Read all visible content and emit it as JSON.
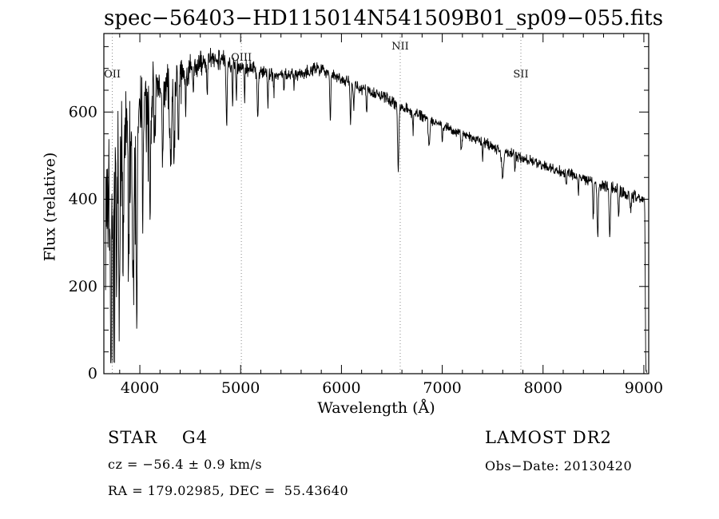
{
  "chart_data": {
    "type": "line",
    "title": "spec−56403−HD115014N541509B01_sp09−055.fits",
    "xlabel": "Wavelength (Å)",
    "ylabel": "Flux (relative)",
    "xlim": [
      3643,
      9048
    ],
    "ylim": [
      0,
      780
    ],
    "x_ticks": [
      4000,
      5000,
      6000,
      7000,
      8000,
      9000
    ],
    "y_ticks": [
      0,
      200,
      400,
      600
    ],
    "x_minor_step": 200,
    "y_minor_step": 50,
    "grid": false,
    "line_color": "#000000",
    "marker_line_color": "#888888",
    "line_markers": [
      {
        "label": "OII",
        "wl": 3727,
        "label_y": 97
      },
      {
        "label": "OIII",
        "wl": 5007,
        "label_y": 76
      },
      {
        "label": "NII",
        "wl": 6583,
        "label_y": 62
      },
      {
        "label": "SII",
        "wl": 7780,
        "label_y": 97
      }
    ],
    "spectrum": {
      "wl_start": 3660,
      "wl_end": 9030,
      "step": 3,
      "seed": 7,
      "continuum": [
        [
          3660,
          400
        ],
        [
          3700,
          420
        ],
        [
          3750,
          455
        ],
        [
          3800,
          500
        ],
        [
          3850,
          535
        ],
        [
          3900,
          555
        ],
        [
          3950,
          575
        ],
        [
          4000,
          600
        ],
        [
          4100,
          628
        ],
        [
          4200,
          648
        ],
        [
          4300,
          665
        ],
        [
          4400,
          682
        ],
        [
          4500,
          700
        ],
        [
          4600,
          710
        ],
        [
          4700,
          718
        ],
        [
          4800,
          724
        ],
        [
          4900,
          714
        ],
        [
          5000,
          702
        ],
        [
          5100,
          700
        ],
        [
          5200,
          694
        ],
        [
          5300,
          688
        ],
        [
          5400,
          685
        ],
        [
          5500,
          686
        ],
        [
          5600,
          690
        ],
        [
          5700,
          696
        ],
        [
          5800,
          700
        ],
        [
          5900,
          688
        ],
        [
          6000,
          678
        ],
        [
          6100,
          664
        ],
        [
          6200,
          652
        ],
        [
          6300,
          645
        ],
        [
          6400,
          636
        ],
        [
          6500,
          625
        ],
        [
          6600,
          612
        ],
        [
          6700,
          601
        ],
        [
          6800,
          592
        ],
        [
          6900,
          581
        ],
        [
          7000,
          570
        ],
        [
          7100,
          558
        ],
        [
          7200,
          549
        ],
        [
          7300,
          540
        ],
        [
          7400,
          531
        ],
        [
          7500,
          521
        ],
        [
          7600,
          512
        ],
        [
          7700,
          503
        ],
        [
          7800,
          494
        ],
        [
          7900,
          486
        ],
        [
          8000,
          478
        ],
        [
          8100,
          470
        ],
        [
          8200,
          462
        ],
        [
          8300,
          455
        ],
        [
          8400,
          448
        ],
        [
          8500,
          440
        ],
        [
          8600,
          432
        ],
        [
          8700,
          424
        ],
        [
          8800,
          415
        ],
        [
          8900,
          407
        ],
        [
          9000,
          399
        ],
        [
          9008,
          396
        ],
        [
          9013,
          250
        ],
        [
          9017,
          60
        ],
        [
          9021,
          6
        ],
        [
          9030,
          3
        ]
      ],
      "absorption_lines": [
        [
          3712,
          330,
          7
        ],
        [
          3735,
          380,
          6
        ],
        [
          3770,
          260,
          5
        ],
        [
          3798,
          300,
          5
        ],
        [
          3835,
          340,
          5
        ],
        [
          3890,
          300,
          6
        ],
        [
          3933,
          420,
          7
        ],
        [
          3969,
          400,
          7
        ],
        [
          4030,
          200,
          5
        ],
        [
          4101,
          240,
          6
        ],
        [
          4144,
          120,
          4
        ],
        [
          4226,
          170,
          5
        ],
        [
          4305,
          210,
          8
        ],
        [
          4340,
          200,
          6
        ],
        [
          4383,
          130,
          4
        ],
        [
          4455,
          90,
          4
        ],
        [
          4530,
          80,
          4
        ],
        [
          4668,
          80,
          4
        ],
        [
          4861,
          150,
          6
        ],
        [
          4920,
          90,
          4
        ],
        [
          4957,
          80,
          3
        ],
        [
          5040,
          80,
          3
        ],
        [
          5170,
          110,
          6
        ],
        [
          5270,
          70,
          4
        ],
        [
          5330,
          55,
          3
        ],
        [
          5430,
          45,
          3
        ],
        [
          5530,
          40,
          3
        ],
        [
          5890,
          105,
          5
        ],
        [
          6090,
          85,
          5
        ],
        [
          6122,
          60,
          4
        ],
        [
          6250,
          50,
          4
        ],
        [
          6563,
          150,
          6
        ],
        [
          6710,
          45,
          4
        ],
        [
          6870,
          60,
          8
        ],
        [
          7000,
          35,
          4
        ],
        [
          7190,
          40,
          5
        ],
        [
          7400,
          35,
          4
        ],
        [
          7600,
          65,
          9
        ],
        [
          7720,
          40,
          4
        ],
        [
          8230,
          40,
          4
        ],
        [
          8350,
          45,
          4
        ],
        [
          8498,
          85,
          5
        ],
        [
          8542,
          120,
          6
        ],
        [
          8662,
          110,
          6
        ],
        [
          8750,
          55,
          5
        ],
        [
          8870,
          45,
          4
        ]
      ],
      "noise": [
        [
          3660,
          150
        ],
        [
          3750,
          140
        ],
        [
          3850,
          120
        ],
        [
          3950,
          100
        ],
        [
          4050,
          70
        ],
        [
          4150,
          55
        ],
        [
          4300,
          40
        ],
        [
          4500,
          28
        ],
        [
          4700,
          22
        ],
        [
          5000,
          16
        ],
        [
          5500,
          13
        ],
        [
          6000,
          12
        ],
        [
          6500,
          11
        ],
        [
          7000,
          10
        ],
        [
          7500,
          10
        ],
        [
          8000,
          10
        ],
        [
          8500,
          12
        ],
        [
          8900,
          12
        ],
        [
          9030,
          5
        ]
      ],
      "spike_until": 4500,
      "spike_prob": 0.06
    }
  },
  "annotations": {
    "class_spectral": "STAR    G4",
    "cz": "cz = −56.4 ± 0.9 km/s",
    "radec": "RA = 179.02985, DEC =  55.43640",
    "survey": "LAMOST DR2",
    "obs_date": "Obs−Date: 20130420"
  }
}
